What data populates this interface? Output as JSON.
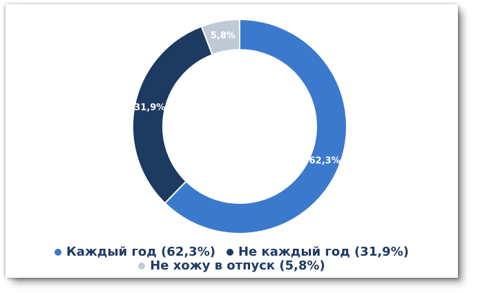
{
  "chart_data": {
    "type": "pie",
    "subtype": "donut",
    "title": "",
    "direction": "clockwise",
    "start_angle_deg": 0,
    "total": 100,
    "slices": [
      {
        "label": "Каждый год",
        "value": 62.3,
        "value_display": "62,3%",
        "legend_label": "Каждый год (62,3%)",
        "color": "#3b79cd"
      },
      {
        "label": "Не каждый год",
        "value": 31.9,
        "value_display": "31,9%",
        "legend_label": "Не каждый год (31,9%)",
        "color": "#1d3a61"
      },
      {
        "label": "Не хожу в отпуск",
        "value": 5.8,
        "value_display": "5,8%",
        "legend_label": "Не хожу в отпуск (5,8%)",
        "color": "#bfcad9"
      }
    ],
    "slice_label_color": "#ffffff",
    "separator_color": "#ffffff",
    "legend_position": "bottom",
    "legend_text_color": "#1e3a63"
  }
}
